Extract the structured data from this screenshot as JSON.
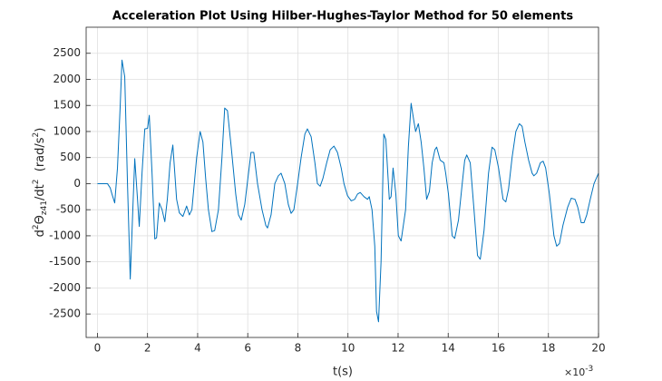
{
  "chart_data": {
    "type": "line",
    "title": "Acceleration Plot Using Hilber-Hughes-Taylor Method for 50 elements",
    "xlabel": "t(s)",
    "x_multiplier": {
      "base": "×10",
      "exponent": "-3"
    },
    "ylabel": {
      "parts": [
        "d",
        "2",
        "Θ",
        "z41",
        "/dt",
        "2",
        "  (rad/s",
        "2",
        ")"
      ]
    },
    "x": [
      0,
      0.29,
      0.4,
      0.51,
      0.58,
      0.69,
      0.8,
      0.91,
      0.98,
      1.09,
      1.2,
      1.31,
      1.42,
      1.49,
      1.6,
      1.67,
      1.78,
      1.89,
      2.0,
      2.07,
      2.18,
      2.29,
      2.36,
      2.47,
      2.58,
      2.69,
      2.79,
      2.9,
      3.01,
      3.16,
      3.27,
      3.41,
      3.56,
      3.67,
      3.77,
      3.96,
      4.1,
      4.21,
      4.32,
      4.43,
      4.57,
      4.68,
      4.83,
      4.97,
      5.08,
      5.19,
      5.34,
      5.52,
      5.63,
      5.74,
      5.88,
      6.03,
      6.13,
      6.24,
      6.39,
      6.57,
      6.72,
      6.79,
      6.93,
      7.08,
      7.22,
      7.33,
      7.48,
      7.62,
      7.73,
      7.84,
      7.99,
      8.13,
      8.28,
      8.38,
      8.53,
      8.68,
      8.78,
      8.89,
      9.0,
      9.15,
      9.29,
      9.44,
      9.58,
      9.73,
      9.84,
      9.98,
      10.13,
      10.27,
      10.38,
      10.49,
      10.64,
      10.78,
      10.85,
      10.96,
      11.07,
      11.14,
      11.22,
      11.32,
      11.43,
      11.51,
      11.65,
      11.72,
      11.8,
      11.91,
      12.01,
      12.12,
      12.3,
      12.41,
      12.52,
      12.63,
      12.7,
      12.81,
      12.92,
      13.03,
      13.14,
      13.25,
      13.36,
      13.47,
      13.54,
      13.68,
      13.83,
      13.9,
      14.01,
      14.16,
      14.26,
      14.41,
      14.56,
      14.66,
      14.74,
      14.88,
      15.03,
      15.17,
      15.28,
      15.43,
      15.61,
      15.75,
      15.86,
      16.01,
      16.19,
      16.3,
      16.41,
      16.55,
      16.7,
      16.84,
      16.95,
      17.06,
      17.21,
      17.35,
      17.42,
      17.53,
      17.68,
      17.79,
      17.89,
      18.04,
      18.22,
      18.33,
      18.44,
      18.58,
      18.77,
      18.91,
      19.06,
      19.17,
      19.31,
      19.42,
      19.53,
      19.67,
      19.82,
      20.0
    ],
    "series": [
      {
        "color": "#0072bd",
        "values": [
          0,
          0,
          0,
          -80,
          -200,
          -370,
          300,
          1500,
          2370,
          2050,
          0,
          -1830,
          -400,
          480,
          -300,
          -820,
          200,
          1050,
          1060,
          1310,
          200,
          -1060,
          -1040,
          -370,
          -500,
          -730,
          -300,
          400,
          740,
          -300,
          -560,
          -630,
          -430,
          -600,
          -500,
          500,
          1000,
          800,
          100,
          -500,
          -920,
          -900,
          -500,
          500,
          1450,
          1400,
          700,
          -200,
          -600,
          -700,
          -400,
          200,
          600,
          600,
          0,
          -500,
          -800,
          -850,
          -600,
          0,
          150,
          200,
          0,
          -400,
          -570,
          -500,
          0,
          500,
          950,
          1050,
          900,
          400,
          0,
          -50,
          100,
          400,
          650,
          720,
          600,
          300,
          0,
          -230,
          -330,
          -300,
          -200,
          -170,
          -250,
          -300,
          -250,
          -500,
          -1200,
          -2450,
          -2650,
          -1500,
          950,
          850,
          -300,
          -250,
          300,
          -200,
          -1000,
          -1100,
          -500,
          700,
          1540,
          1200,
          1000,
          1150,
          800,
          300,
          -300,
          -150,
          400,
          650,
          700,
          450,
          400,
          200,
          -200,
          -1000,
          -1050,
          -700,
          0,
          450,
          550,
          400,
          -500,
          -1380,
          -1450,
          -900,
          200,
          700,
          650,
          300,
          -300,
          -350,
          -100,
          500,
          1000,
          1150,
          1100,
          800,
          450,
          200,
          150,
          200,
          400,
          430,
          300,
          -200,
          -1000,
          -1200,
          -1150,
          -800,
          -450,
          -280,
          -300,
          -450,
          -750,
          -750,
          -600,
          -300,
          0,
          200
        ]
      }
    ],
    "xlim": [
      -0.45,
      20
    ],
    "ylim": [
      -2950,
      3000
    ],
    "xticks": [
      0,
      2,
      4,
      6,
      8,
      10,
      12,
      14,
      16,
      18,
      20
    ],
    "yticks": [
      -2500,
      -2000,
      -1500,
      -1000,
      -500,
      0,
      500,
      1000,
      1500,
      2000,
      2500
    ],
    "grid": true
  }
}
